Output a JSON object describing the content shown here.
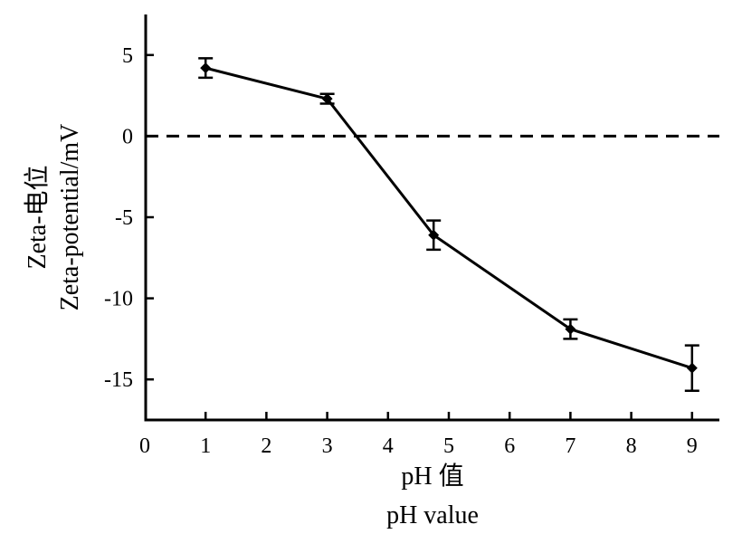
{
  "chart_data": {
    "type": "line",
    "xlabel_lines": [
      "pH 值",
      "pH value"
    ],
    "ylabel_lines": [
      "Zeta-电位",
      "Zeta-potential/mV"
    ],
    "xlim": [
      0,
      9.5
    ],
    "ylim": [
      -17.5,
      7.5
    ],
    "x_ticks": [
      0,
      1,
      2,
      3,
      4,
      5,
      6,
      7,
      8,
      9
    ],
    "x_tick_labels": [
      "0",
      "1",
      "2",
      "3",
      "4",
      "5",
      "6",
      "7",
      "8",
      "9"
    ],
    "y_ticks": [
      5,
      0,
      -5,
      -10,
      -15
    ],
    "y_tick_labels": [
      "5",
      "0",
      "-5",
      "-10",
      "-15"
    ],
    "reference_line": {
      "y": 0,
      "style": "dashed"
    },
    "series": [
      {
        "name": "Zeta-potential",
        "marker": "diamond",
        "x": [
          1,
          3,
          4.75,
          7,
          9
        ],
        "y": [
          4.2,
          2.3,
          -6.1,
          -11.9,
          -14.3
        ],
        "error": [
          0.6,
          0.3,
          0.9,
          0.6,
          1.4
        ]
      }
    ]
  }
}
